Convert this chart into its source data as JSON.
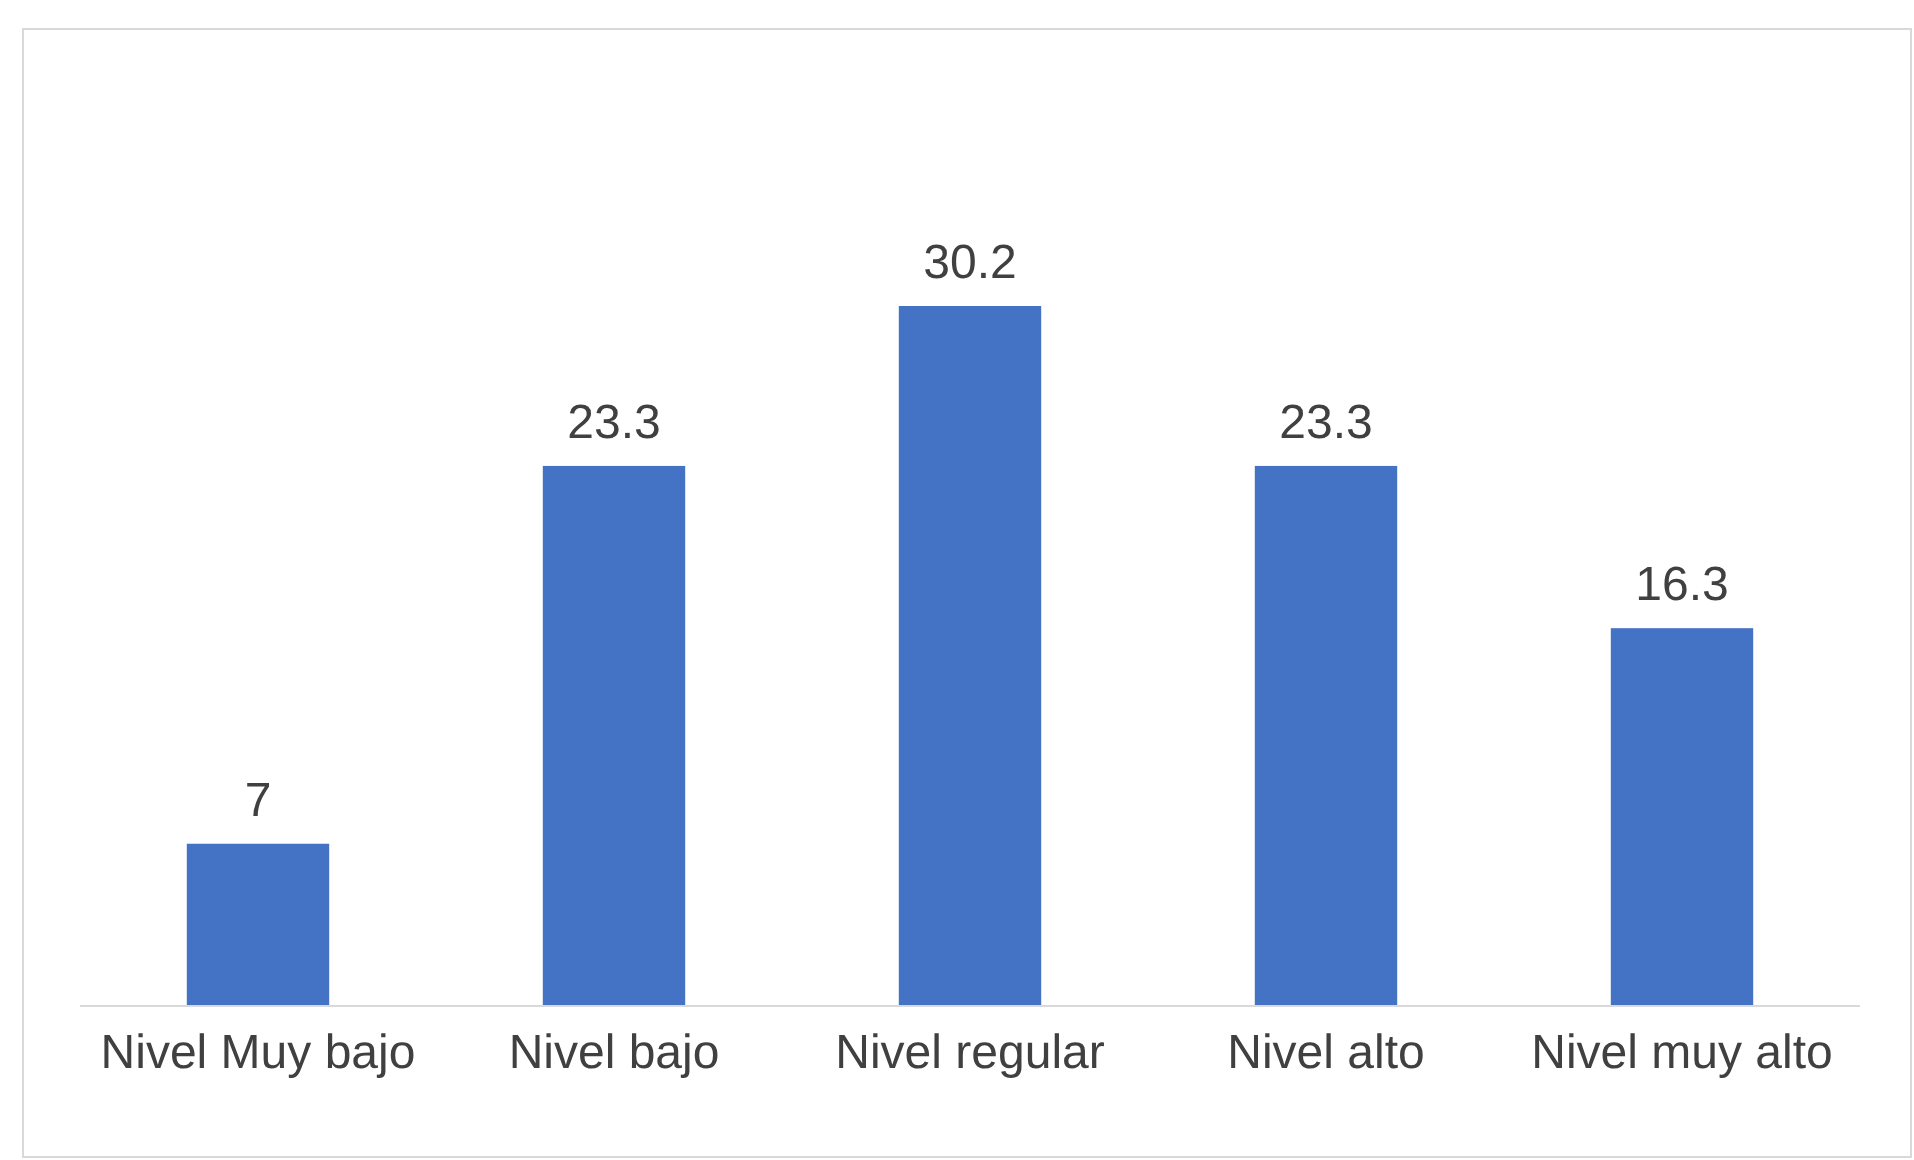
{
  "chart_data": {
    "type": "bar",
    "categories": [
      "Nivel Muy bajo",
      "Nivel bajo",
      "Nivel regular",
      "Nivel alto",
      "Nivel muy alto"
    ],
    "values": [
      7,
      23.3,
      30.2,
      23.3,
      16.3
    ],
    "color": "#4472c4",
    "data_labels": true,
    "tick_labels": "x"
  }
}
